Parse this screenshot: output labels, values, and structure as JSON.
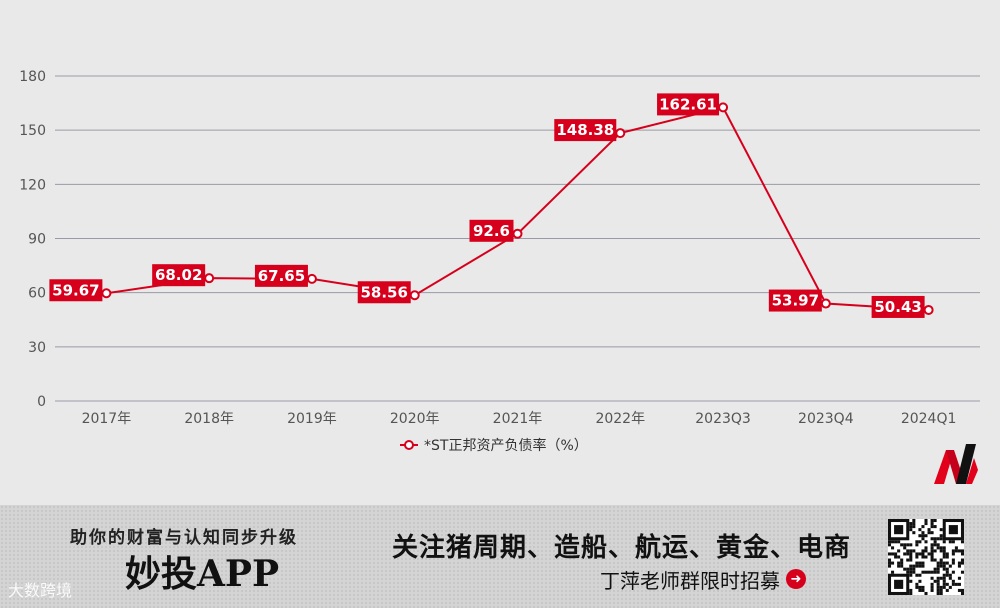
{
  "chart_data": {
    "type": "line",
    "categories": [
      "2017年",
      "2018年",
      "2019年",
      "2020年",
      "2021年",
      "2022年",
      "2023Q3",
      "2023Q4",
      "2024Q1"
    ],
    "series": [
      {
        "name": "*ST正邦资产负债率（%）",
        "values": [
          59.67,
          68.02,
          67.65,
          58.56,
          92.6,
          148.38,
          162.61,
          53.97,
          50.43
        ],
        "labels": [
          "59.67",
          "68.02",
          "67.65",
          "58.56",
          "92.6",
          "148.38",
          "162.61",
          "53.97",
          "50.43"
        ],
        "color": "#d6001c"
      }
    ],
    "ylim": [
      0,
      180
    ],
    "yticks": [
      "0",
      "30",
      "60",
      "90",
      "120",
      "150",
      "180"
    ],
    "grid": true,
    "legend_position": "bottom-center",
    "title": "",
    "xlabel": "",
    "ylabel": ""
  },
  "colors": {
    "accent": "#d6001c",
    "background": "#e9e9e9",
    "grid": "#9a9aa6"
  },
  "banner": {
    "tagline": "助你的财富与认知同步升级",
    "app_name": "妙投APP",
    "follow_text": "关注猪周期、造船、航运、黄金、电商",
    "recruit_text": "丁萍老师群限时招募",
    "watermark": "大数跨境",
    "arrow_icon": "arrow-right-circle-icon"
  }
}
